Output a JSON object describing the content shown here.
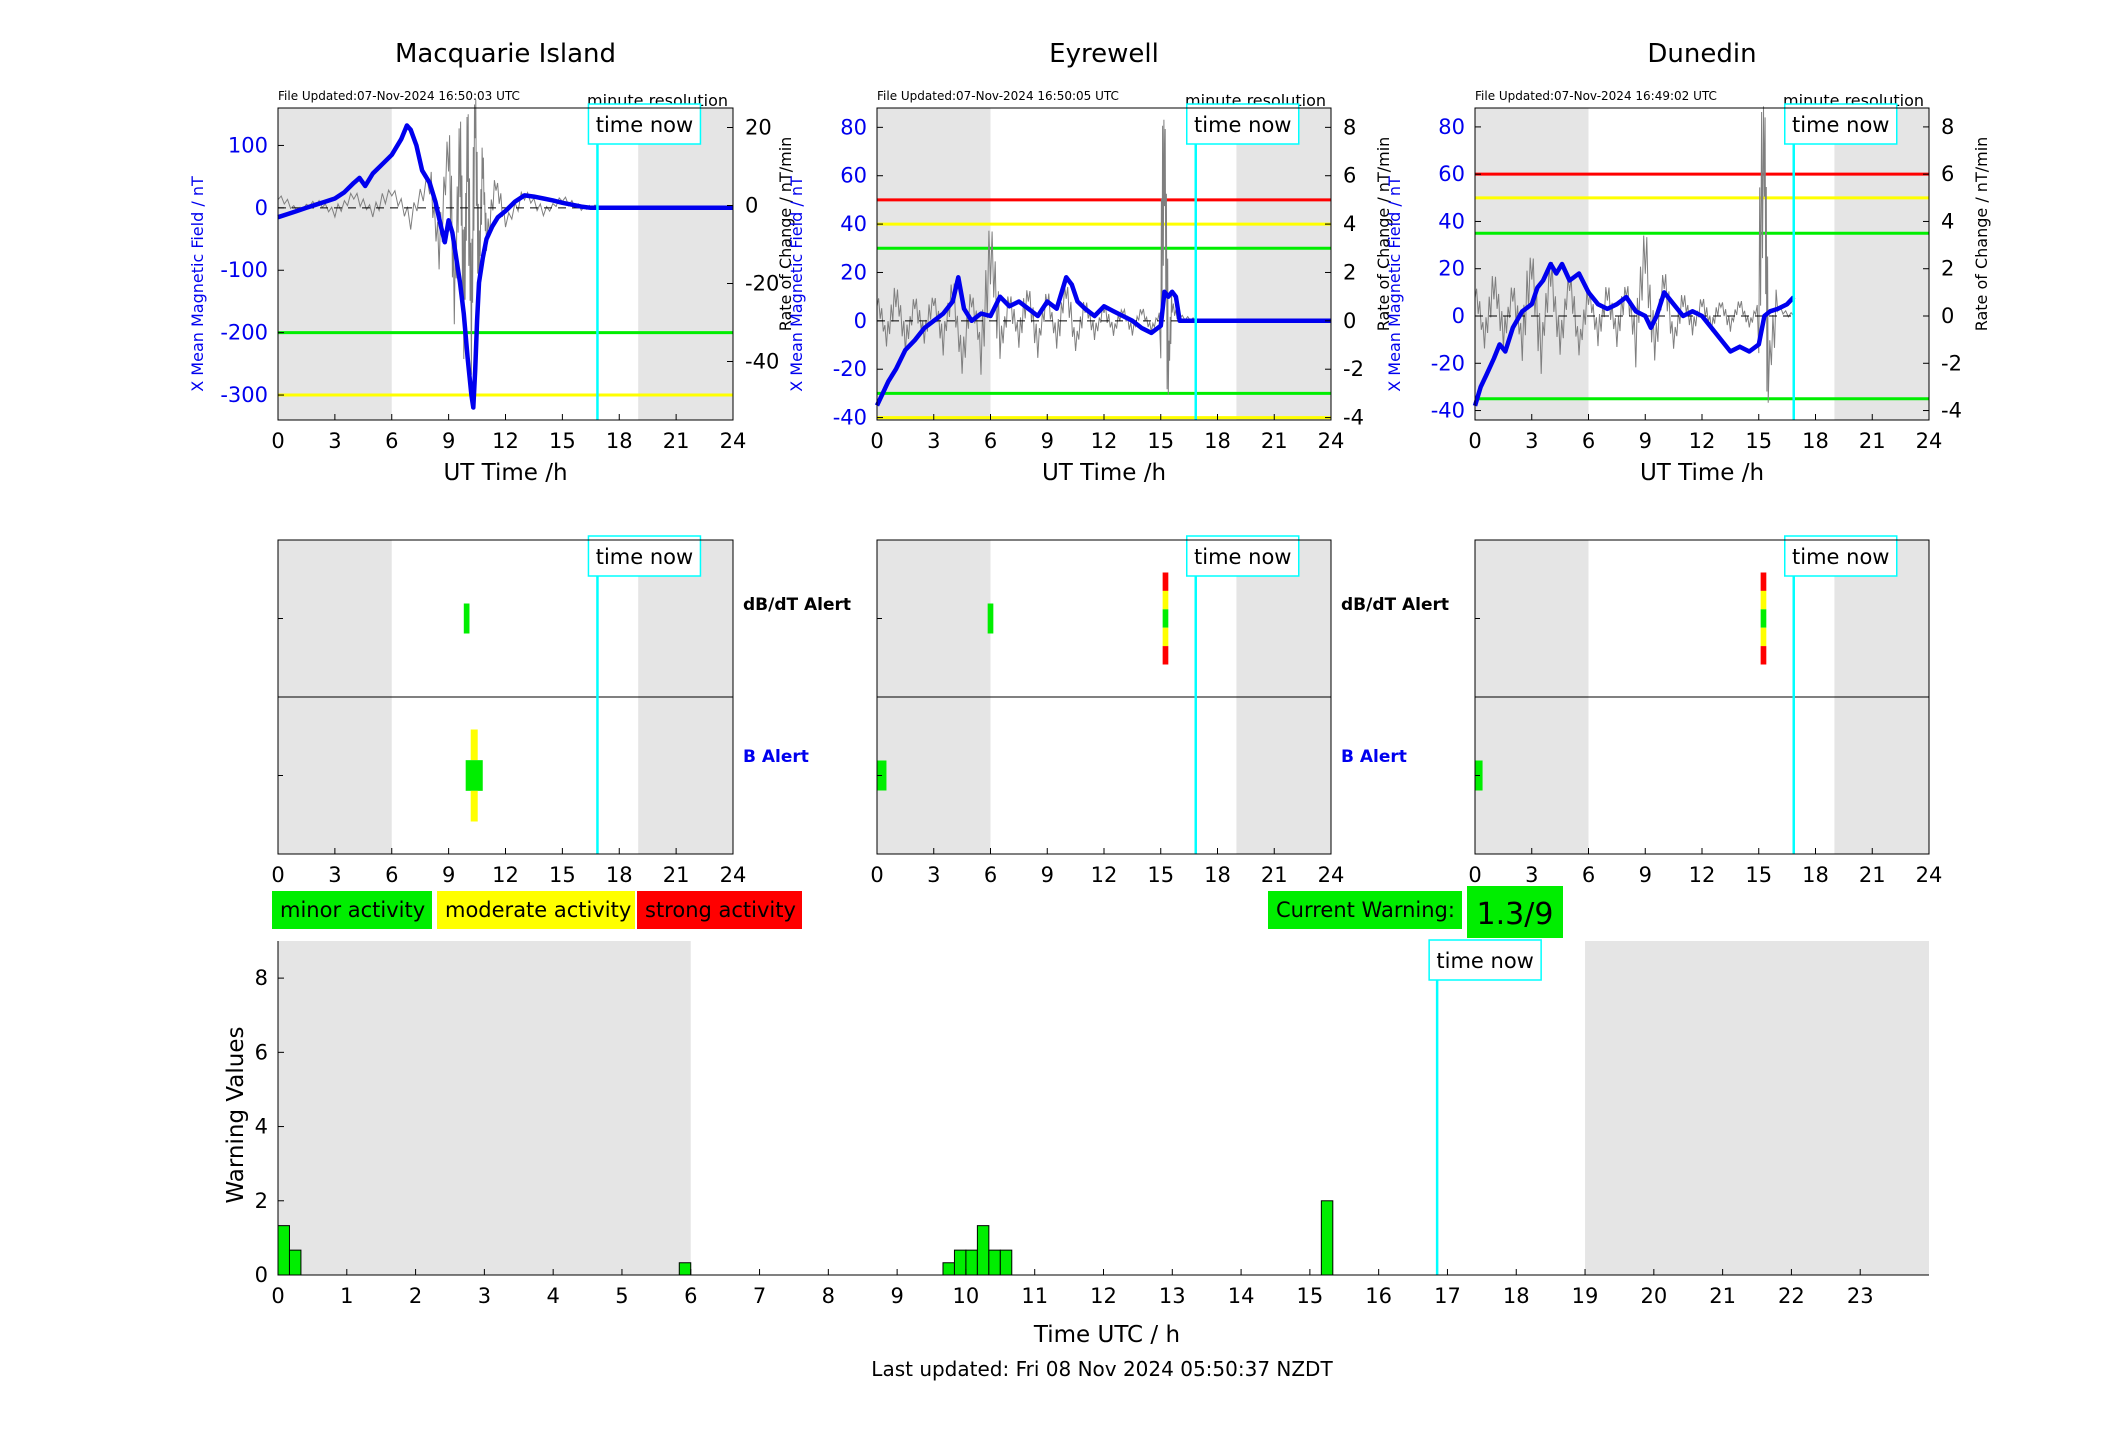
{
  "colors": {
    "blue": "#0000ee",
    "green": "#00ee00",
    "yellow": "#ffff00",
    "red": "#ff0000",
    "cyan": "#00ffff",
    "shade": "#e5e5e5",
    "raw": "#7f7f7f"
  },
  "labels": {
    "time_now": "time now",
    "minute_resolution": "minute resolution",
    "x_axis_ut": "UT Time /h",
    "y_left": "X Mean Magnetic Field / nT",
    "y_right": "Rate of Change / nT/min",
    "dbdt_alert": "dB/dT Alert",
    "b_alert": "B Alert",
    "legend_minor": "minor activity",
    "legend_moderate": "moderate activity",
    "legend_strong": "strong activity",
    "current_warning_label": "Current Warning:",
    "current_warning_value": "1.3/9",
    "bottom_xlabel": "Time UTC / h",
    "bottom_ylabel": "Warning Values",
    "last_updated": "Last updated: Fri 08 Nov 2024 05:50:37 NZDT"
  },
  "chart_data": [
    {
      "type": "line",
      "station": "Macquarie Island",
      "file_updated": "File Updated:07-Nov-2024 16:50:03 UTC",
      "xlim": [
        0,
        24
      ],
      "xticks": [
        0,
        3,
        6,
        9,
        12,
        15,
        18,
        21,
        24
      ],
      "ylim_left": [
        -340,
        160
      ],
      "yticks_left": [
        -300,
        -200,
        -100,
        0,
        100
      ],
      "ylim_right": [
        -55,
        25
      ],
      "yticks_right": [
        -40,
        -20,
        0,
        20
      ],
      "time_now": 16.85,
      "night_shading": [
        [
          0,
          6
        ],
        [
          19,
          24
        ]
      ],
      "thresholds": [
        {
          "value": -200,
          "color": "green"
        },
        {
          "value": -300,
          "color": "yellow"
        }
      ],
      "x_field": {
        "t": [
          0,
          0.5,
          1,
          1.5,
          2,
          2.5,
          3,
          3.5,
          4,
          4.3,
          4.6,
          5,
          5.5,
          6,
          6.5,
          6.8,
          7,
          7.3,
          7.6,
          8,
          8.3,
          8.6,
          8.8,
          9,
          9.2,
          9.4,
          9.6,
          9.8,
          10,
          10.1,
          10.2,
          10.3,
          10.4,
          10.5,
          10.6,
          10.8,
          11,
          11.3,
          11.6,
          12,
          12.5,
          13,
          13.5,
          14,
          14.5,
          15,
          15.5,
          16,
          16.5,
          16.8,
          16.85,
          24
        ],
        "v": [
          -15,
          -10,
          -5,
          0,
          5,
          10,
          15,
          25,
          40,
          48,
          35,
          55,
          70,
          85,
          110,
          132,
          125,
          100,
          60,
          40,
          10,
          -30,
          -55,
          -20,
          -40,
          -80,
          -120,
          -170,
          -240,
          -270,
          -300,
          -320,
          -260,
          -180,
          -120,
          -80,
          -50,
          -30,
          -15,
          -5,
          10,
          20,
          18,
          15,
          12,
          8,
          5,
          2,
          0,
          0,
          0,
          0
        ]
      },
      "rate_of_change": {
        "t": [
          0,
          1,
          2,
          3,
          4,
          5,
          6,
          7,
          8,
          8.5,
          9,
          9.3,
          9.6,
          9.8,
          10,
          10.2,
          10.4,
          10.6,
          10.8,
          11,
          11.5,
          12,
          13,
          14,
          15,
          16,
          16.85
        ],
        "v": [
          2,
          -1,
          1,
          -2,
          3,
          -2,
          4,
          -3,
          6,
          -10,
          14,
          -22,
          18,
          -30,
          22,
          -35,
          28,
          -18,
          10,
          -8,
          5,
          -4,
          3,
          -2,
          2,
          -1,
          0
        ]
      }
    },
    {
      "type": "line",
      "station": "Eyrewell",
      "file_updated": "File Updated:07-Nov-2024 16:50:05 UTC",
      "xlim": [
        0,
        24
      ],
      "xticks": [
        0,
        3,
        6,
        9,
        12,
        15,
        18,
        21,
        24
      ],
      "ylim_left": [
        -41,
        88
      ],
      "yticks_left": [
        -40,
        -20,
        0,
        20,
        40,
        60,
        80
      ],
      "ylim_right": [
        -4.1,
        8.8
      ],
      "yticks_right": [
        -4,
        -2,
        0,
        2,
        4,
        6,
        8
      ],
      "time_now": 16.85,
      "night_shading": [
        [
          0,
          6
        ],
        [
          19,
          24
        ]
      ],
      "thresholds": [
        {
          "value": 50,
          "color": "red"
        },
        {
          "value": 40,
          "color": "yellow"
        },
        {
          "value": 30,
          "color": "green"
        },
        {
          "value": -30,
          "color": "green"
        },
        {
          "value": -40,
          "color": "yellow"
        }
      ],
      "x_field": {
        "t": [
          0,
          0.3,
          0.6,
          1,
          1.5,
          2,
          2.5,
          3,
          3.5,
          4,
          4.3,
          4.6,
          5,
          5.5,
          6,
          6.5,
          7,
          7.5,
          8,
          8.5,
          9,
          9.5,
          10,
          10.3,
          10.6,
          11,
          11.5,
          12,
          12.5,
          13,
          13.5,
          14,
          14.5,
          15,
          15.2,
          15.4,
          15.6,
          15.8,
          16,
          16.3,
          16.85,
          24
        ],
        "v": [
          -35,
          -30,
          -25,
          -20,
          -12,
          -8,
          -3,
          0,
          3,
          8,
          18,
          5,
          0,
          3,
          2,
          10,
          6,
          8,
          5,
          2,
          8,
          5,
          18,
          15,
          8,
          5,
          2,
          6,
          4,
          2,
          0,
          -3,
          -5,
          -2,
          12,
          10,
          12,
          10,
          0,
          0,
          0,
          0
        ]
      },
      "rate_of_change": {
        "t": [
          0,
          0.5,
          1,
          1.5,
          2,
          2.5,
          3,
          3.5,
          4,
          4.5,
          5,
          5.5,
          6,
          6.5,
          7,
          7.5,
          8,
          8.5,
          9,
          9.5,
          10,
          10.5,
          11,
          11.5,
          12,
          12.5,
          13,
          13.5,
          14,
          14.5,
          15,
          15.2,
          15.4,
          15.6,
          16,
          16.85
        ],
        "v": [
          0.8,
          -0.6,
          1.2,
          -1,
          0.9,
          -0.7,
          1,
          -0.8,
          1.2,
          -1.5,
          0.8,
          -1,
          3.2,
          -1.2,
          1,
          -0.8,
          1.3,
          -1,
          0.9,
          -0.6,
          1.2,
          -0.9,
          0.7,
          -0.6,
          0.6,
          -0.5,
          0.5,
          -0.4,
          0.4,
          -0.3,
          0.3,
          7.7,
          -2,
          0.5,
          0.2,
          0
        ]
      }
    },
    {
      "type": "line",
      "station": "Dunedin",
      "file_updated": "File Updated:07-Nov-2024 16:49:02 UTC",
      "xlim": [
        0,
        24
      ],
      "xticks": [
        0,
        3,
        6,
        9,
        12,
        15,
        18,
        21,
        24
      ],
      "ylim_left": [
        -44,
        88
      ],
      "yticks_left": [
        -40,
        -20,
        0,
        20,
        40,
        60,
        80
      ],
      "ylim_right": [
        -4.4,
        8.8
      ],
      "yticks_right": [
        -4,
        -2,
        0,
        2,
        4,
        6,
        8
      ],
      "time_now": 16.85,
      "night_shading": [
        [
          0,
          6
        ],
        [
          19,
          24
        ]
      ],
      "thresholds": [
        {
          "value": 60,
          "color": "red"
        },
        {
          "value": 50,
          "color": "yellow"
        },
        {
          "value": 35,
          "color": "green"
        },
        {
          "value": -35,
          "color": "green"
        }
      ],
      "x_field": {
        "t": [
          0,
          0.3,
          0.6,
          1,
          1.3,
          1.6,
          2,
          2.5,
          3,
          3.3,
          3.6,
          4,
          4.3,
          4.6,
          5,
          5.5,
          6,
          6.5,
          7,
          7.5,
          8,
          8.5,
          9,
          9.3,
          9.6,
          10,
          10.5,
          11,
          11.5,
          12,
          12.5,
          13,
          13.5,
          14,
          14.5,
          15,
          15.3,
          15.6,
          16,
          16.5,
          16.85
        ],
        "v": [
          -38,
          -30,
          -25,
          -18,
          -12,
          -15,
          -5,
          2,
          5,
          12,
          15,
          22,
          18,
          22,
          15,
          18,
          10,
          5,
          3,
          5,
          8,
          2,
          0,
          -5,
          0,
          10,
          5,
          0,
          2,
          0,
          -5,
          -10,
          -15,
          -13,
          -15,
          -12,
          0,
          2,
          3,
          5,
          8
        ]
      },
      "rate_of_change": {
        "t": [
          0,
          0.5,
          1,
          1.5,
          2,
          2.5,
          3,
          3.5,
          4,
          4.5,
          5,
          5.5,
          6,
          6.5,
          7,
          7.5,
          8,
          8.5,
          9,
          9.5,
          10,
          10.5,
          11,
          11.5,
          12,
          12.5,
          13,
          13.5,
          14,
          14.5,
          15,
          15.3,
          15.5,
          16,
          16.85
        ],
        "v": [
          1,
          -0.8,
          1.5,
          -1,
          1.2,
          -1.3,
          2.5,
          -1.5,
          1.8,
          -1,
          1.4,
          -1.2,
          1,
          -0.9,
          1.2,
          -1,
          1.3,
          -0.8,
          2.6,
          -1.2,
          1.5,
          -1,
          0.8,
          -0.6,
          0.7,
          -0.5,
          0.6,
          -0.4,
          0.5,
          -0.3,
          0.4,
          8.2,
          -2.4,
          0.3,
          0
        ]
      }
    },
    {
      "type": "alert_timeline",
      "station": "Macquarie Island",
      "xlim": [
        0,
        24
      ],
      "xticks": [
        0,
        3,
        6,
        9,
        12,
        15,
        18,
        21,
        24
      ],
      "time_now": 16.85,
      "night_shading": [
        [
          0,
          6
        ],
        [
          19,
          24
        ]
      ],
      "dbdt_alerts": [
        {
          "start": 9.8,
          "end": 10.1,
          "levels": [
            "green"
          ]
        }
      ],
      "b_alerts": [
        {
          "start": 9.9,
          "end": 10.8,
          "levels": [
            "yellow",
            "green",
            "yellow"
          ]
        }
      ]
    },
    {
      "type": "alert_timeline",
      "station": "Eyrewell",
      "xlim": [
        0,
        24
      ],
      "xticks": [
        0,
        3,
        6,
        9,
        12,
        15,
        18,
        21,
        24
      ],
      "time_now": 16.85,
      "night_shading": [
        [
          0,
          6
        ],
        [
          19,
          24
        ]
      ],
      "dbdt_alerts": [
        {
          "start": 5.85,
          "end": 6.15,
          "levels": [
            "green"
          ]
        },
        {
          "start": 15.1,
          "end": 15.4,
          "levels": [
            "red",
            "yellow",
            "green",
            "yellow",
            "red"
          ]
        }
      ],
      "b_alerts": [
        {
          "start": 0.0,
          "end": 0.5,
          "levels": [
            "green"
          ]
        }
      ]
    },
    {
      "type": "alert_timeline",
      "station": "Dunedin",
      "xlim": [
        0,
        24
      ],
      "xticks": [
        0,
        3,
        6,
        9,
        12,
        15,
        18,
        21,
        24
      ],
      "time_now": 16.85,
      "night_shading": [
        [
          0,
          6
        ],
        [
          19,
          24
        ]
      ],
      "dbdt_alerts": [
        {
          "start": 15.1,
          "end": 15.4,
          "levels": [
            "red",
            "yellow",
            "green",
            "yellow",
            "red"
          ]
        }
      ],
      "b_alerts": [
        {
          "start": 0.0,
          "end": 0.4,
          "levels": [
            "green"
          ]
        }
      ]
    },
    {
      "type": "bar",
      "xlabel": "Time UTC / h",
      "ylabel": "Warning Values",
      "xlim": [
        0,
        24
      ],
      "xticks": [
        0,
        1,
        2,
        3,
        4,
        5,
        6,
        7,
        8,
        9,
        10,
        11,
        12,
        13,
        14,
        15,
        16,
        17,
        18,
        19,
        20,
        21,
        22,
        23
      ],
      "ylim": [
        0,
        9
      ],
      "yticks": [
        0,
        2,
        4,
        6,
        8
      ],
      "time_now": 16.85,
      "night_shading": [
        [
          0,
          6
        ],
        [
          19,
          24
        ]
      ],
      "bar_width": 0.1667,
      "bars": [
        {
          "x": 0.0,
          "value": 1.33
        },
        {
          "x": 0.1667,
          "value": 0.67
        },
        {
          "x": 5.8333,
          "value": 0.33
        },
        {
          "x": 9.6667,
          "value": 0.33
        },
        {
          "x": 9.8333,
          "value": 0.67
        },
        {
          "x": 10.0,
          "value": 0.67
        },
        {
          "x": 10.1667,
          "value": 1.33
        },
        {
          "x": 10.3333,
          "value": 0.67
        },
        {
          "x": 10.5,
          "value": 0.67
        },
        {
          "x": 15.1667,
          "value": 2.0
        }
      ]
    }
  ]
}
